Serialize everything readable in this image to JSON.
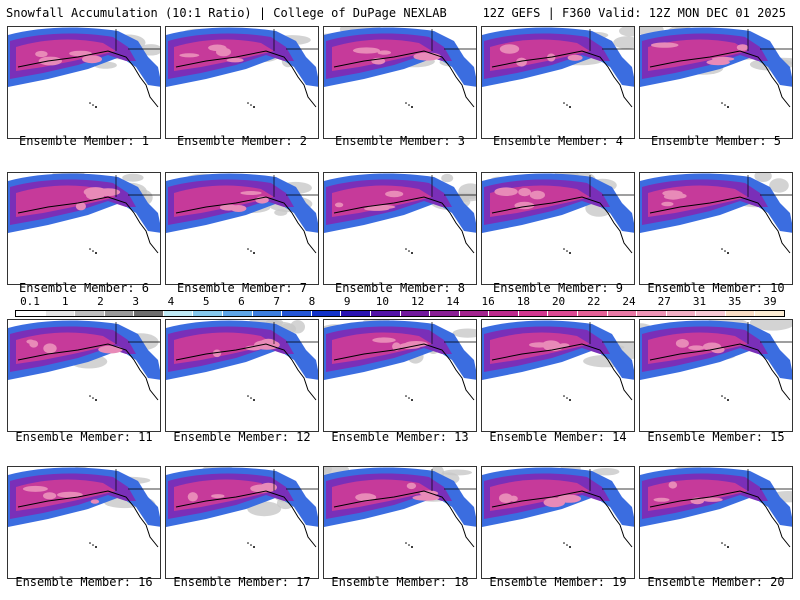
{
  "header": {
    "left": "Snowfall Accumulation (10:1 Ratio) | College of DuPage NEXLAB",
    "right": "12Z GEFS | F360 Valid: 12Z MON DEC 01 2025"
  },
  "members": [
    {
      "label": "Ensemble Member: 1"
    },
    {
      "label": "Ensemble Member: 2"
    },
    {
      "label": "Ensemble Member: 3"
    },
    {
      "label": "Ensemble Member: 4"
    },
    {
      "label": "Ensemble Member: 5"
    },
    {
      "label": "Ensemble Member: 6"
    },
    {
      "label": "Ensemble Member: 7"
    },
    {
      "label": "Ensemble Member: 8"
    },
    {
      "label": "Ensemble Member: 9"
    },
    {
      "label": "Ensemble Member: 10"
    },
    {
      "label": "Ensemble Member: 11"
    },
    {
      "label": "Ensemble Member: 12"
    },
    {
      "label": "Ensemble Member: 13"
    },
    {
      "label": "Ensemble Member: 14"
    },
    {
      "label": "Ensemble Member: 15"
    },
    {
      "label": "Ensemble Member: 16"
    },
    {
      "label": "Ensemble Member: 17"
    },
    {
      "label": "Ensemble Member: 18"
    },
    {
      "label": "Ensemble Member: 19"
    },
    {
      "label": "Ensemble Member: 20"
    }
  ],
  "colorbar": {
    "ticks": [
      "0.1",
      "1",
      "2",
      "3",
      "4",
      "5",
      "6",
      "7",
      "8",
      "9",
      "10",
      "12",
      "14",
      "16",
      "18",
      "20",
      "22",
      "24",
      "27",
      "31",
      "35",
      "39"
    ],
    "colors": [
      "#ffffff",
      "#e6e6e6",
      "#bfbfbf",
      "#9a9a9a",
      "#6e6e6e",
      "#bfeaf5",
      "#86c9ec",
      "#5fa7e8",
      "#3d7fe0",
      "#2456d6",
      "#1233c9",
      "#2a14b3",
      "#5314a8",
      "#72199d",
      "#8a1f95",
      "#a3238e",
      "#bd2a8c",
      "#d2378f",
      "#dc4a93",
      "#e46196",
      "#e97aa6",
      "#ee95b6",
      "#f2b0c5",
      "#f6c9d5",
      "#f9ddc5",
      "#fcecd3"
    ]
  },
  "map_colors": {
    "snow_light": "#c8c8c8",
    "snow_blue": "#3b6de0",
    "snow_purple": "#7a2fb8",
    "snow_magenta": "#c63a9a",
    "snow_pink": "#e88ab8",
    "coast": "#000000"
  }
}
